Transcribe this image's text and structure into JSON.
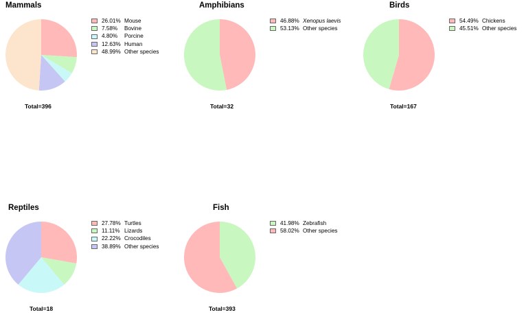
{
  "chart_data": [
    {
      "type": "pie",
      "title": "Mammals",
      "total_label": "Total=396",
      "slices": [
        {
          "label": "Mouse",
          "pct_label": "26.01%",
          "value": 26.01,
          "color": "#ffb9b9",
          "italic": false
        },
        {
          "label": "Bovine",
          "pct_label": "7.58%",
          "value": 7.58,
          "color": "#c8f7c0",
          "italic": false
        },
        {
          "label": "Porcine",
          "pct_label": "4.80%",
          "value": 4.8,
          "color": "#c8f8f8",
          "italic": false
        },
        {
          "label": "Human",
          "pct_label": "12.63%",
          "value": 12.63,
          "color": "#c6c6f4",
          "italic": false
        },
        {
          "label": "Other species",
          "pct_label": "48.99%",
          "value": 48.99,
          "color": "#fde4cc",
          "italic": false
        }
      ]
    },
    {
      "type": "pie",
      "title": "Amphibians",
      "total_label": "Total=32",
      "slices": [
        {
          "label": "Xenopus laevis",
          "pct_label": "46.88%",
          "value": 46.88,
          "color": "#ffb9b9",
          "italic": true
        },
        {
          "label": "Other species",
          "pct_label": "53.13%",
          "value": 53.13,
          "color": "#c8f7c0",
          "italic": false
        }
      ]
    },
    {
      "type": "pie",
      "title": "Birds",
      "total_label": "Total=167",
      "slices": [
        {
          "label": "Chickens",
          "pct_label": "54.49%",
          "value": 54.49,
          "color": "#ffb9b9",
          "italic": false
        },
        {
          "label": "Other species",
          "pct_label": "45.51%",
          "value": 45.51,
          "color": "#c8f7c0",
          "italic": false
        }
      ]
    },
    {
      "type": "pie",
      "title": "Reptiles",
      "total_label": "Total=18",
      "slices": [
        {
          "label": "Turtles",
          "pct_label": "27.78%",
          "value": 27.78,
          "color": "#ffb9b9",
          "italic": false
        },
        {
          "label": "Lizards",
          "pct_label": "11.11%",
          "value": 11.11,
          "color": "#c8f7c0",
          "italic": false
        },
        {
          "label": "Crocodiles",
          "pct_label": "22.22%",
          "value": 22.22,
          "color": "#c8f8f8",
          "italic": false
        },
        {
          "label": "Other species",
          "pct_label": "38.89%",
          "value": 38.89,
          "color": "#c6c6f4",
          "italic": false
        }
      ]
    },
    {
      "type": "pie",
      "title": "Fish",
      "total_label": "Total=393",
      "slices": [
        {
          "label": "Zebrafish",
          "pct_label": "41.98%",
          "value": 41.98,
          "color": "#c8f7c0",
          "italic": false
        },
        {
          "label": "Other species",
          "pct_label": "58.02%",
          "value": 58.02,
          "color": "#ffb9b9",
          "italic": false
        }
      ]
    }
  ]
}
